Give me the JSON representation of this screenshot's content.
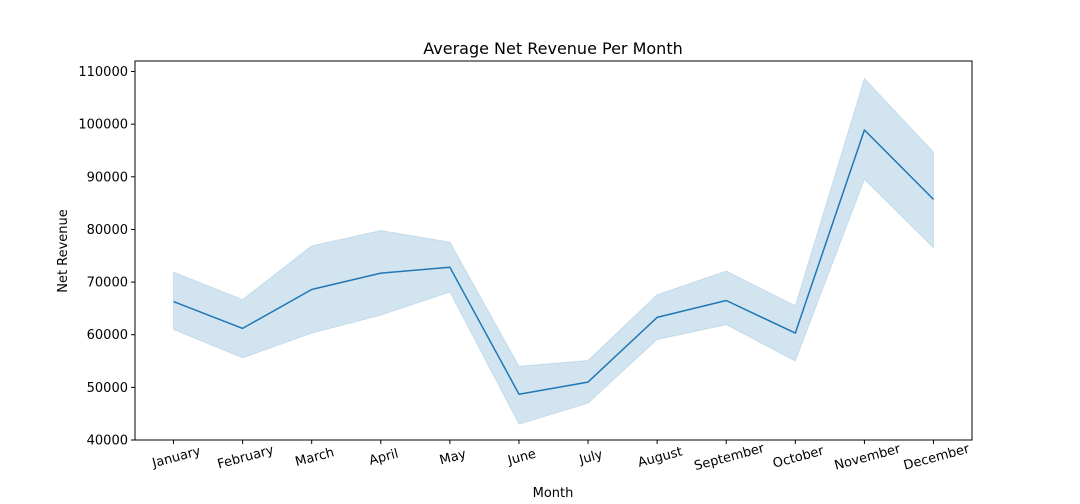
{
  "chart_data": {
    "type": "line",
    "title": "Average Net Revenue Per Month",
    "xlabel": "Month",
    "ylabel": "Net Revenue",
    "categories": [
      "January",
      "February",
      "March",
      "April",
      "May",
      "June",
      "July",
      "August",
      "September",
      "October",
      "November",
      "December"
    ],
    "series": [
      {
        "values": [
          66300,
          61200,
          68600,
          71700,
          72800,
          48700,
          51000,
          63300,
          66500,
          60300,
          98900,
          85700
        ],
        "ci_low": [
          61000,
          55600,
          60300,
          63700,
          68100,
          43000,
          47000,
          59100,
          61900,
          55000,
          89500,
          76500
        ],
        "ci_high": [
          71900,
          66700,
          76900,
          79800,
          77600,
          54000,
          55100,
          67600,
          72100,
          65500,
          108700,
          94700
        ]
      }
    ],
    "ylim": [
      40000,
      112000
    ],
    "yticks": [
      40000,
      50000,
      60000,
      70000,
      80000,
      90000,
      100000,
      110000
    ],
    "line_color": "#1f77b4",
    "band_color": "#1f77b4",
    "grid": false,
    "legend": false
  }
}
